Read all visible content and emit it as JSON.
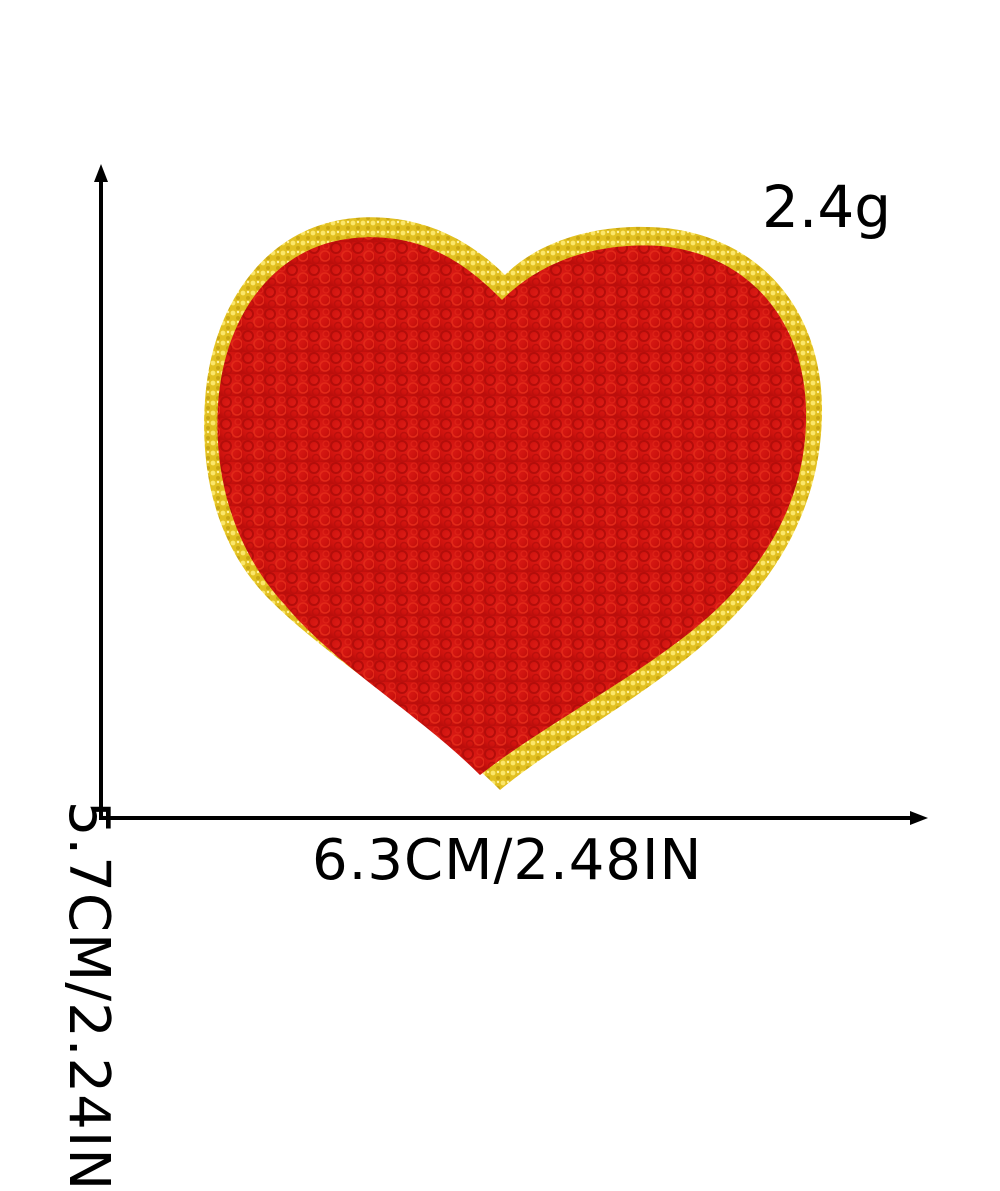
{
  "product": {
    "weight": "2.4g",
    "width_dimension": "6.3CM/2.48IN",
    "height_dimension": "5.7CM/2.24IN"
  },
  "colors": {
    "heart_fill": "#d81410",
    "heart_dark": "#a80a08",
    "heart_light": "#f0361f",
    "border_gold": "#e6c61e",
    "border_gold_light": "#fbe66a",
    "axis": "#000000",
    "background": "#ffffff"
  },
  "icons": {
    "vertical_arrow": "arrow-up-icon",
    "horizontal_arrow": "arrow-right-icon",
    "patch": "heart-patch-icon"
  }
}
